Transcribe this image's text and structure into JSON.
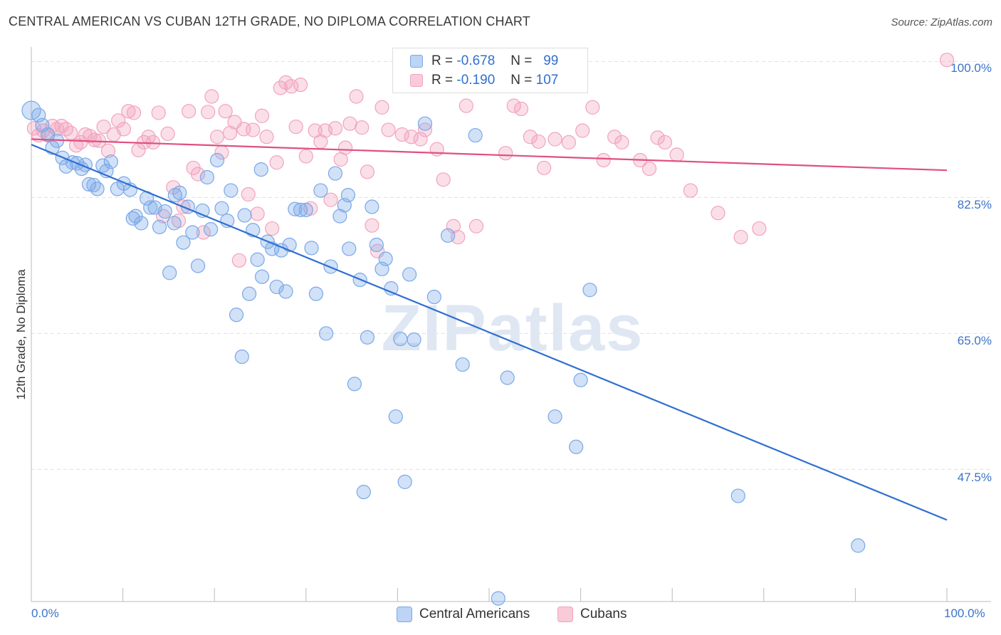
{
  "title": "CENTRAL AMERICAN VS CUBAN 12TH GRADE, NO DIPLOMA CORRELATION CHART",
  "source": "Source: ZipAtlas.com",
  "watermark": "ZIPatlas",
  "legend": {
    "rows": [
      {
        "r_label": "R =",
        "r_value": "-0.678",
        "n_label": "N =",
        "n_value": "99"
      },
      {
        "r_label": "R =",
        "r_value": "-0.190",
        "n_label": "N =",
        "n_value": "107"
      }
    ]
  },
  "bottom_legend": [
    "Central Americans",
    "Cubans"
  ],
  "y_axis_title": "12th Grade, No Diploma",
  "y_ticks": [
    "100.0%",
    "82.5%",
    "65.0%",
    "47.5%"
  ],
  "x_ticks": [
    "0.0%",
    "100.0%"
  ],
  "colors": {
    "blue": "#7aa8e8",
    "blue_line": "#2f6fd0",
    "pink": "#f2a3bd",
    "pink_line": "#e0507f",
    "grid": "#e0e0e0"
  },
  "chart_data": {
    "type": "scatter",
    "xlim": [
      0,
      100
    ],
    "ylim": [
      30.5,
      101.5
    ],
    "grid": true,
    "legend_position": "top-center",
    "series": [
      {
        "name": "Central Americans",
        "r": -0.678,
        "n": 99,
        "trend": [
          [
            0,
            89.3
          ],
          [
            100,
            41.0
          ]
        ],
        "points": [
          [
            0.0,
            93.7
          ],
          [
            0.8,
            93.1
          ],
          [
            1.2,
            91.8
          ],
          [
            1.8,
            90.6
          ],
          [
            2.3,
            88.9
          ],
          [
            2.8,
            89.8
          ],
          [
            3.4,
            87.6
          ],
          [
            3.8,
            86.5
          ],
          [
            4.5,
            87.0
          ],
          [
            5.0,
            86.9
          ],
          [
            5.5,
            86.2
          ],
          [
            5.9,
            86.7
          ],
          [
            6.3,
            84.2
          ],
          [
            6.8,
            84.1
          ],
          [
            7.2,
            83.6
          ],
          [
            7.8,
            86.6
          ],
          [
            8.2,
            85.9
          ],
          [
            8.7,
            87.1
          ],
          [
            9.4,
            83.6
          ],
          [
            10.1,
            84.3
          ],
          [
            10.8,
            83.5
          ],
          [
            11.4,
            80.1
          ],
          [
            12.0,
            79.2
          ],
          [
            12.6,
            82.4
          ],
          [
            13.0,
            81.2
          ],
          [
            13.5,
            81.2
          ],
          [
            14.0,
            78.7
          ],
          [
            14.6,
            80.7
          ],
          [
            15.1,
            72.8
          ],
          [
            15.7,
            82.8
          ],
          [
            16.2,
            83.1
          ],
          [
            16.6,
            76.7
          ],
          [
            17.1,
            81.3
          ],
          [
            17.6,
            78.0
          ],
          [
            18.2,
            73.7
          ],
          [
            18.7,
            80.8
          ],
          [
            19.2,
            85.1
          ],
          [
            19.6,
            78.4
          ],
          [
            20.3,
            87.3
          ],
          [
            20.8,
            81.1
          ],
          [
            21.4,
            79.5
          ],
          [
            21.8,
            83.4
          ],
          [
            22.4,
            67.4
          ],
          [
            23.0,
            62.0
          ],
          [
            23.3,
            80.2
          ],
          [
            23.8,
            70.1
          ],
          [
            24.2,
            78.3
          ],
          [
            24.7,
            74.5
          ],
          [
            25.2,
            72.3
          ],
          [
            25.8,
            76.8
          ],
          [
            26.3,
            75.9
          ],
          [
            26.8,
            71.0
          ],
          [
            27.3,
            75.7
          ],
          [
            27.8,
            70.4
          ],
          [
            28.2,
            76.4
          ],
          [
            28.8,
            81.0
          ],
          [
            29.4,
            80.9
          ],
          [
            30.0,
            80.9
          ],
          [
            30.6,
            76.0
          ],
          [
            31.1,
            70.1
          ],
          [
            31.6,
            83.4
          ],
          [
            32.2,
            65.0
          ],
          [
            32.7,
            73.6
          ],
          [
            33.2,
            85.6
          ],
          [
            33.7,
            80.1
          ],
          [
            34.2,
            81.5
          ],
          [
            34.7,
            75.9
          ],
          [
            35.3,
            58.5
          ],
          [
            35.9,
            71.9
          ],
          [
            36.3,
            44.6
          ],
          [
            36.7,
            64.5
          ],
          [
            37.2,
            81.3
          ],
          [
            37.7,
            76.4
          ],
          [
            38.3,
            73.3
          ],
          [
            38.7,
            74.6
          ],
          [
            39.3,
            70.8
          ],
          [
            39.8,
            54.3
          ],
          [
            40.3,
            64.3
          ],
          [
            40.8,
            45.9
          ],
          [
            41.3,
            72.6
          ],
          [
            41.8,
            64.2
          ],
          [
            43.0,
            92.0
          ],
          [
            44.0,
            69.7
          ],
          [
            45.5,
            77.6
          ],
          [
            47.1,
            61.0
          ],
          [
            48.5,
            90.5
          ],
          [
            52.0,
            59.3
          ],
          [
            57.2,
            54.3
          ],
          [
            59.5,
            50.4
          ],
          [
            60.0,
            59.0
          ],
          [
            61.0,
            70.6
          ],
          [
            77.2,
            44.1
          ],
          [
            90.3,
            37.7
          ],
          [
            51.0,
            30.9
          ],
          [
            49.5,
            100.0
          ],
          [
            34.6,
            82.8
          ],
          [
            25.1,
            86.1
          ],
          [
            15.6,
            79.2
          ],
          [
            11.1,
            79.8
          ]
        ]
      },
      {
        "name": "Cubans",
        "r": -0.19,
        "n": 107,
        "trend": [
          [
            0,
            90.0
          ],
          [
            100,
            86.0
          ]
        ],
        "points": [
          [
            0.3,
            91.4
          ],
          [
            0.8,
            90.5
          ],
          [
            1.3,
            91.1
          ],
          [
            1.8,
            90.5
          ],
          [
            2.3,
            91.7
          ],
          [
            2.8,
            91.3
          ],
          [
            3.3,
            91.7
          ],
          [
            3.8,
            91.3
          ],
          [
            4.3,
            90.8
          ],
          [
            4.9,
            89.2
          ],
          [
            5.4,
            89.6
          ],
          [
            5.9,
            90.6
          ],
          [
            6.4,
            90.4
          ],
          [
            6.9,
            89.9
          ],
          [
            7.4,
            89.8
          ],
          [
            7.9,
            91.6
          ],
          [
            8.4,
            88.5
          ],
          [
            9.0,
            90.6
          ],
          [
            9.5,
            92.4
          ],
          [
            10.1,
            91.3
          ],
          [
            10.6,
            93.6
          ],
          [
            11.2,
            93.4
          ],
          [
            11.7,
            88.6
          ],
          [
            12.3,
            89.6
          ],
          [
            12.8,
            90.3
          ],
          [
            13.3,
            89.6
          ],
          [
            13.9,
            93.4
          ],
          [
            14.4,
            80.1
          ],
          [
            14.9,
            90.7
          ],
          [
            15.5,
            83.8
          ],
          [
            16.1,
            79.5
          ],
          [
            16.6,
            81.3
          ],
          [
            17.2,
            93.6
          ],
          [
            17.7,
            86.3
          ],
          [
            18.2,
            85.5
          ],
          [
            18.8,
            78.0
          ],
          [
            19.3,
            93.5
          ],
          [
            19.7,
            95.5
          ],
          [
            20.3,
            90.3
          ],
          [
            20.8,
            88.3
          ],
          [
            21.2,
            93.6
          ],
          [
            21.7,
            90.8
          ],
          [
            22.2,
            92.2
          ],
          [
            22.7,
            74.4
          ],
          [
            23.2,
            91.3
          ],
          [
            23.7,
            82.9
          ],
          [
            24.2,
            91.2
          ],
          [
            24.7,
            80.4
          ],
          [
            25.2,
            93.0
          ],
          [
            25.7,
            90.3
          ],
          [
            26.3,
            78.5
          ],
          [
            26.8,
            87.0
          ],
          [
            27.2,
            96.6
          ],
          [
            27.8,
            97.3
          ],
          [
            28.4,
            96.8
          ],
          [
            28.9,
            91.6
          ],
          [
            29.4,
            97.0
          ],
          [
            30.0,
            87.8
          ],
          [
            30.5,
            81.1
          ],
          [
            31.0,
            91.1
          ],
          [
            31.6,
            89.7
          ],
          [
            32.1,
            91.1
          ],
          [
            32.7,
            82.2
          ],
          [
            33.2,
            91.4
          ],
          [
            33.8,
            87.4
          ],
          [
            34.3,
            88.9
          ],
          [
            34.8,
            92.0
          ],
          [
            35.5,
            95.5
          ],
          [
            36.1,
            91.5
          ],
          [
            36.7,
            85.8
          ],
          [
            37.2,
            78.9
          ],
          [
            37.8,
            75.6
          ],
          [
            38.3,
            94.1
          ],
          [
            39.0,
            91.2
          ],
          [
            40.5,
            90.6
          ],
          [
            41.5,
            90.3
          ],
          [
            42.5,
            90.0
          ],
          [
            43.0,
            91.2
          ],
          [
            44.3,
            88.7
          ],
          [
            45.0,
            84.8
          ],
          [
            46.1,
            78.8
          ],
          [
            46.6,
            77.4
          ],
          [
            47.5,
            94.3
          ],
          [
            48.6,
            78.8
          ],
          [
            51.8,
            88.2
          ],
          [
            52.7,
            94.3
          ],
          [
            53.5,
            93.9
          ],
          [
            54.5,
            90.3
          ],
          [
            55.4,
            89.7
          ],
          [
            56.0,
            86.3
          ],
          [
            57.2,
            90.0
          ],
          [
            58.7,
            89.6
          ],
          [
            60.2,
            91.1
          ],
          [
            61.3,
            94.1
          ],
          [
            62.5,
            87.3
          ],
          [
            63.7,
            90.3
          ],
          [
            64.5,
            89.6
          ],
          [
            66.5,
            87.3
          ],
          [
            67.5,
            86.2
          ],
          [
            68.4,
            90.2
          ],
          [
            69.2,
            89.6
          ],
          [
            70.5,
            88.0
          ],
          [
            72.0,
            83.4
          ],
          [
            75.0,
            80.5
          ],
          [
            77.5,
            77.4
          ],
          [
            79.5,
            78.5
          ],
          [
            100.0,
            100.2
          ]
        ]
      }
    ]
  }
}
